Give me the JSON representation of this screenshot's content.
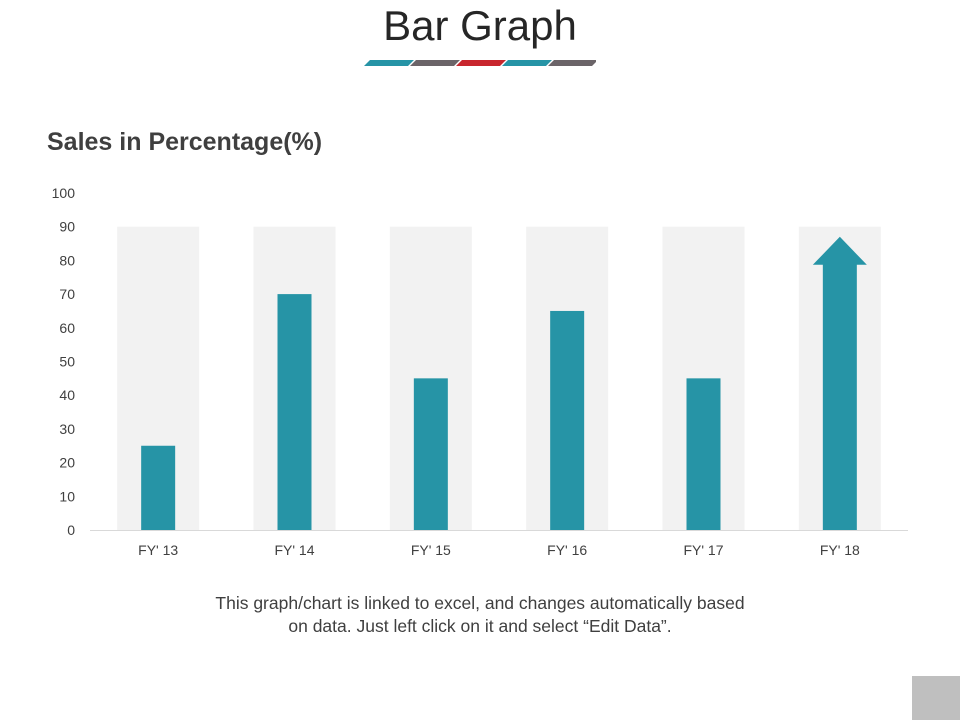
{
  "slide": {
    "title": "Bar Graph",
    "caption_line1": "This graph/chart is linked to excel, and changes automatically based",
    "caption_line2": "on data. Just left click on it and select “Edit Data”."
  },
  "decor_colors": [
    "#2694a6",
    "#6b6468",
    "#c8262d",
    "#2694a6",
    "#6b6468"
  ],
  "colors": {
    "bar": "#2694a6",
    "background_column": "#f2f2f2",
    "axis_line": "#d9d9d9",
    "corner_box": "#bfbfbf"
  },
  "chart_data": {
    "type": "bar",
    "title": "Sales in Percentage(%)",
    "xlabel": "",
    "ylabel": "",
    "categories": [
      "FY'  13",
      "FY'  14",
      "FY'  15",
      "FY'  16",
      "FY'  17",
      "FY'  18"
    ],
    "values": [
      25,
      70,
      45,
      65,
      45,
      87
    ],
    "background_values": [
      90,
      90,
      90,
      90,
      90,
      90
    ],
    "last_bar_style": "arrow",
    "ylim": [
      0,
      100
    ],
    "yticks": [
      0,
      10,
      20,
      30,
      40,
      50,
      60,
      70,
      80,
      90,
      100
    ],
    "grid": false,
    "legend": "none"
  }
}
